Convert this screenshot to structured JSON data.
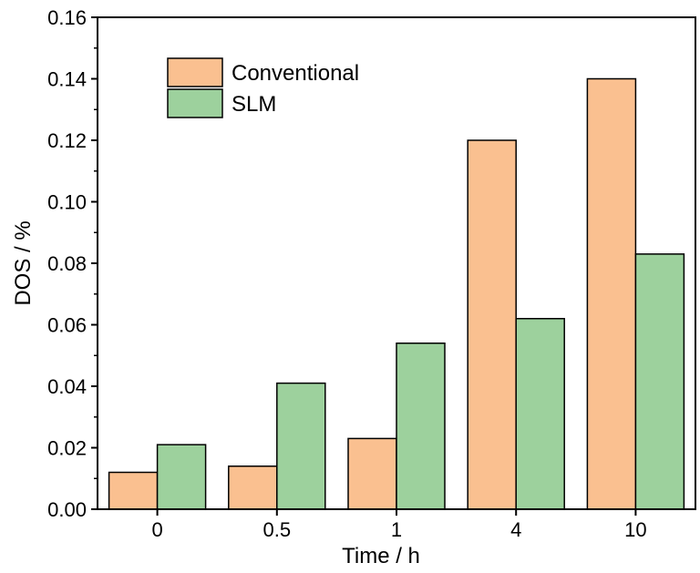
{
  "chart_data": {
    "type": "bar",
    "xlabel": "Time / h",
    "ylabel": "DOS / %",
    "categories": [
      "0",
      "0.5",
      "1",
      "4",
      "10"
    ],
    "ylim": [
      0,
      0.16
    ],
    "yticks": [
      "0.00",
      "0.02",
      "0.04",
      "0.06",
      "0.08",
      "0.10",
      "0.12",
      "0.14",
      "0.16"
    ],
    "series": [
      {
        "name": "Conventional",
        "color": "#fac090",
        "values": [
          0.012,
          0.014,
          0.023,
          0.12,
          0.14
        ]
      },
      {
        "name": "SLM",
        "color": "#9dd19d",
        "values": [
          0.021,
          0.041,
          0.054,
          0.062,
          0.083
        ]
      }
    ],
    "legend_position": "top-left",
    "grid": false
  }
}
